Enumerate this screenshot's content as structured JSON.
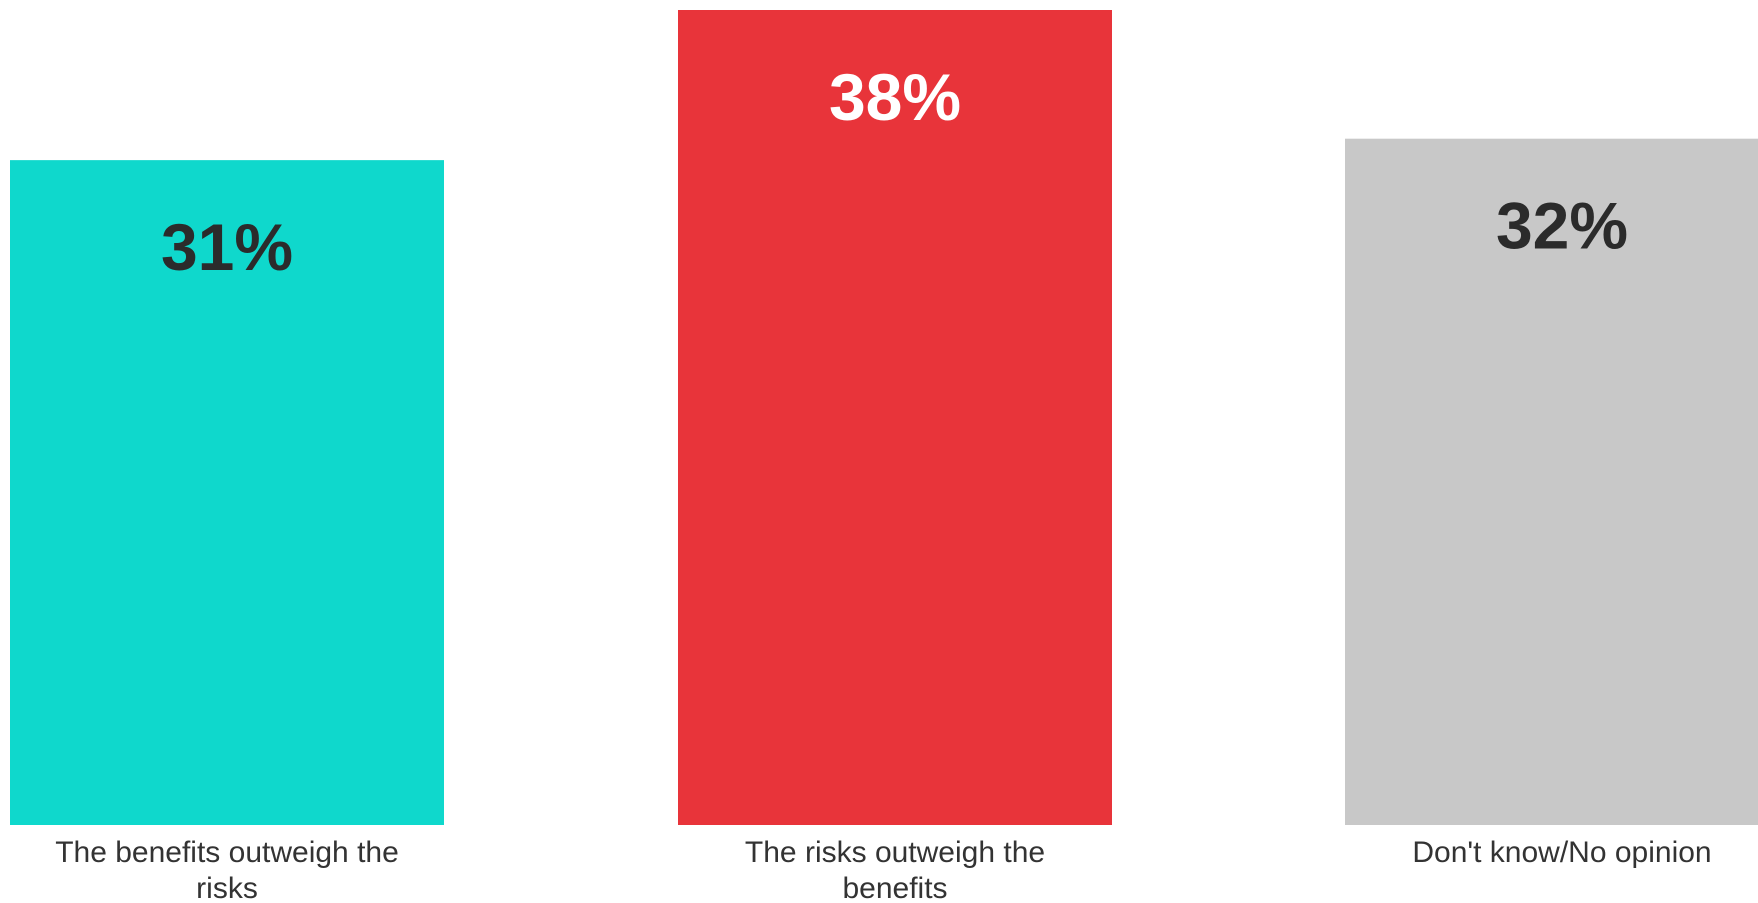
{
  "chart_data": {
    "type": "bar",
    "categories": [
      "The benefits outweigh the risks",
      "The risks outweigh the benefits",
      "Don't know/No opinion"
    ],
    "category_label_lines": [
      [
        "The benefits outweigh the",
        "risks"
      ],
      [
        "The risks outweigh the",
        "benefits"
      ],
      [
        "Don't know/No opinion"
      ]
    ],
    "values": [
      31,
      38,
      32
    ],
    "value_labels": [
      "31%",
      "38%",
      "32%"
    ],
    "colors": [
      "#0fd8cc",
      "#e8343a",
      "#c8c8c8"
    ],
    "value_label_colors": [
      "#2b2b2b",
      "#ffffff",
      "#2b2b2b"
    ],
    "title": "",
    "xlabel": "",
    "ylabel": "",
    "ylim": [
      0,
      38
    ],
    "grid": false,
    "legend": "none"
  }
}
